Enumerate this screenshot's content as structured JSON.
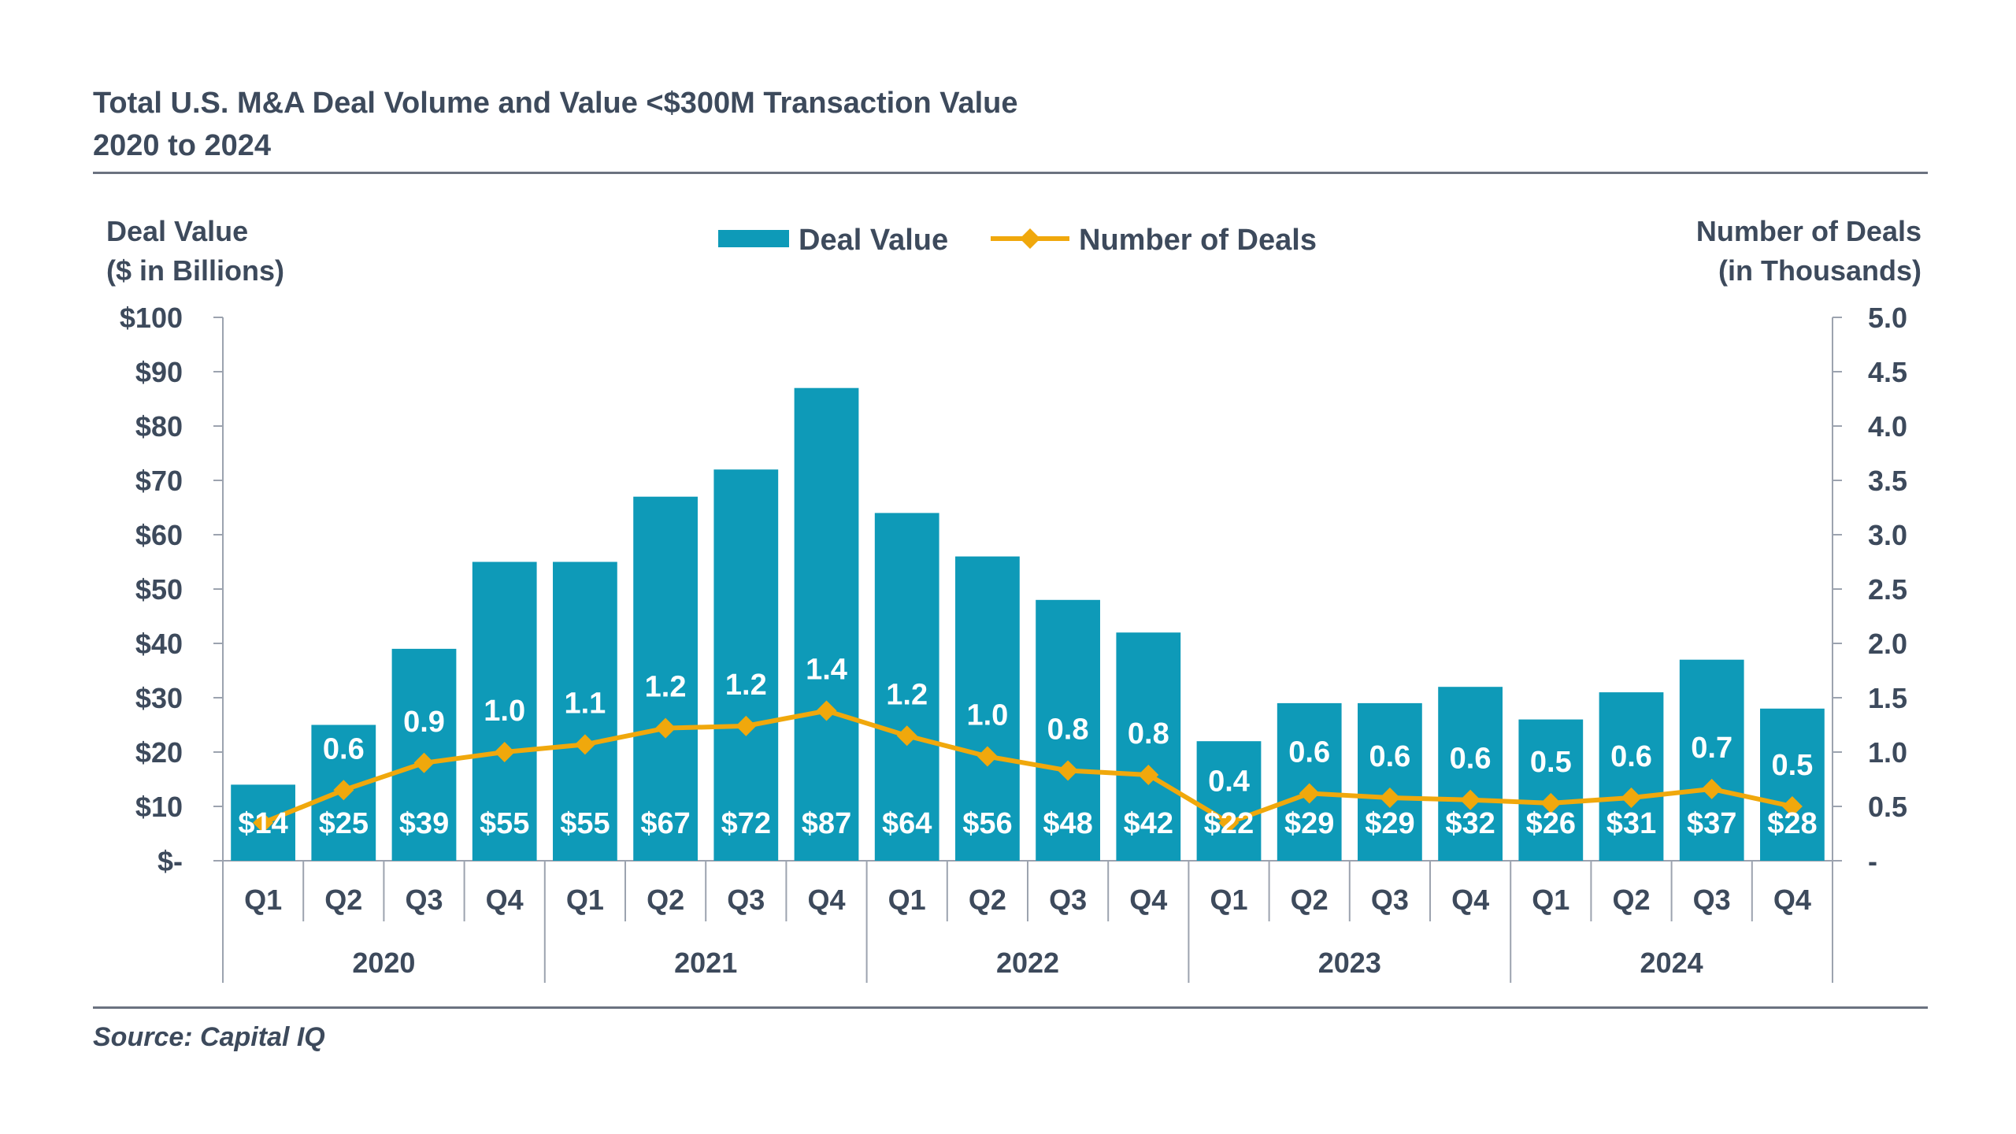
{
  "title_line1": "Total U.S. M&A Deal Volume and Value <$300M Transaction Value",
  "title_line2": "2020 to 2024",
  "source": "Source: Capital IQ",
  "left_axis_title": [
    "Deal Value",
    "($ in Billions)"
  ],
  "right_axis_title": [
    "Number of Deals",
    "(in Thousands)"
  ],
  "colors": {
    "bar": "#0e9ab8",
    "line": "#f0a80c",
    "text": "#3d4a5c",
    "axis": "#9ca3af"
  },
  "chart_data": {
    "type": "bar",
    "categories": [
      "Q1",
      "Q2",
      "Q3",
      "Q4",
      "Q1",
      "Q2",
      "Q3",
      "Q4",
      "Q1",
      "Q2",
      "Q3",
      "Q4",
      "Q1",
      "Q2",
      "Q3",
      "Q4",
      "Q1",
      "Q2",
      "Q3",
      "Q4"
    ],
    "years": [
      "2020",
      "2021",
      "2022",
      "2023",
      "2024"
    ],
    "series": [
      {
        "name": "Deal Value",
        "type": "bar",
        "axis": "left",
        "values": [
          14,
          25,
          39,
          55,
          55,
          67,
          72,
          87,
          64,
          56,
          48,
          42,
          22,
          29,
          29,
          32,
          26,
          31,
          37,
          28
        ],
        "labels": [
          "$14",
          "$25",
          "$39",
          "$55",
          "$55",
          "$67",
          "$72",
          "$87",
          "$64",
          "$56",
          "$48",
          "$42",
          "$22",
          "$29",
          "$29",
          "$32",
          "$26",
          "$31",
          "$37",
          "$28"
        ]
      },
      {
        "name": "Number of Deals",
        "type": "line",
        "axis": "right",
        "values": [
          0.35,
          0.65,
          0.9,
          1.0,
          1.07,
          1.22,
          1.24,
          1.38,
          1.15,
          0.96,
          0.83,
          0.79,
          0.35,
          0.62,
          0.58,
          0.56,
          0.53,
          0.58,
          0.66,
          0.5
        ],
        "labels": [
          "",
          "0.6",
          "0.9",
          "1.0",
          "1.1",
          "1.2",
          "1.2",
          "1.4",
          "1.2",
          "1.0",
          "0.8",
          "0.8",
          "0.4",
          "0.6",
          "0.6",
          "0.6",
          "0.5",
          "0.6",
          "0.7",
          "0.5"
        ]
      }
    ],
    "left_ylim": [
      0,
      100
    ],
    "left_ticks": [
      "$-",
      "$10",
      "$20",
      "$30",
      "$40",
      "$50",
      "$60",
      "$70",
      "$80",
      "$90",
      "$100"
    ],
    "right_ylim": [
      0,
      5
    ],
    "right_ticks": [
      "-",
      "0.5",
      "1.0",
      "1.5",
      "2.0",
      "2.5",
      "3.0",
      "3.5",
      "4.0",
      "4.5",
      "5.0"
    ],
    "legend_position": "top-center",
    "grid": false
  }
}
